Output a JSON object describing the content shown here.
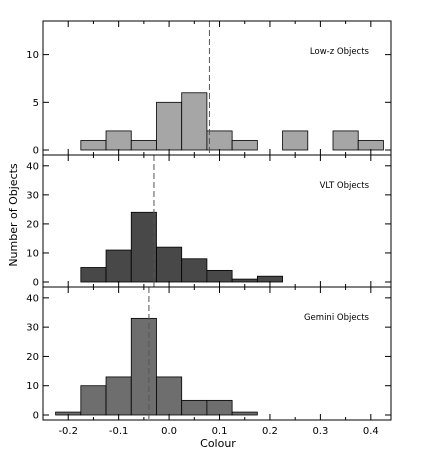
{
  "chart_data": {
    "type": "bar",
    "xlabel": "Colour",
    "ylabel": "Number of Objects",
    "xlim": [
      -0.25,
      0.44
    ],
    "bin_width": 0.05,
    "x_ticks": [
      -0.2,
      -0.1,
      0.0,
      0.1,
      0.2,
      0.3,
      0.4
    ],
    "x_tick_labels": [
      "-0.2",
      "-0.1",
      "0.0",
      "0.1",
      "0.2",
      "0.3",
      "0.4"
    ],
    "panels": [
      {
        "label": "Low-z Objects",
        "color": "#a6a6a6",
        "ylim": [
          0,
          13
        ],
        "y_ticks": [
          0,
          5,
          10
        ],
        "y_tick_labels": [
          "0",
          "5",
          "10"
        ],
        "median": 0.08,
        "bins": [
          {
            "x0": -0.175,
            "count": 1
          },
          {
            "x0": -0.125,
            "count": 2
          },
          {
            "x0": -0.075,
            "count": 1
          },
          {
            "x0": -0.025,
            "count": 5
          },
          {
            "x0": 0.025,
            "count": 6
          },
          {
            "x0": 0.075,
            "count": 2
          },
          {
            "x0": 0.125,
            "count": 1
          },
          {
            "x0": 0.225,
            "count": 2
          },
          {
            "x0": 0.325,
            "count": 2
          },
          {
            "x0": 0.375,
            "count": 1
          }
        ]
      },
      {
        "label": "VLT Objects",
        "color": "#484848",
        "ylim": [
          0,
          42
        ],
        "y_ticks": [
          0,
          10,
          20,
          30,
          40
        ],
        "y_tick_labels": [
          "0",
          "10",
          "20",
          "30",
          "40"
        ],
        "median": -0.03,
        "bins": [
          {
            "x0": -0.175,
            "count": 5
          },
          {
            "x0": -0.125,
            "count": 11
          },
          {
            "x0": -0.075,
            "count": 24
          },
          {
            "x0": -0.025,
            "count": 12
          },
          {
            "x0": 0.025,
            "count": 8
          },
          {
            "x0": 0.075,
            "count": 4
          },
          {
            "x0": 0.125,
            "count": 1
          },
          {
            "x0": 0.175,
            "count": 2
          }
        ]
      },
      {
        "label": "Gemini Objects",
        "color": "#6e6e6e",
        "ylim": [
          0,
          42
        ],
        "y_ticks": [
          0,
          10,
          20,
          30,
          40
        ],
        "y_tick_labels": [
          "0",
          "10",
          "20",
          "30",
          "40"
        ],
        "median": -0.04,
        "bins": [
          {
            "x0": -0.225,
            "count": 1
          },
          {
            "x0": -0.175,
            "count": 10
          },
          {
            "x0": -0.125,
            "count": 13
          },
          {
            "x0": -0.075,
            "count": 33
          },
          {
            "x0": -0.025,
            "count": 13
          },
          {
            "x0": 0.025,
            "count": 5
          },
          {
            "x0": 0.075,
            "count": 5
          },
          {
            "x0": 0.125,
            "count": 1
          }
        ]
      }
    ]
  }
}
